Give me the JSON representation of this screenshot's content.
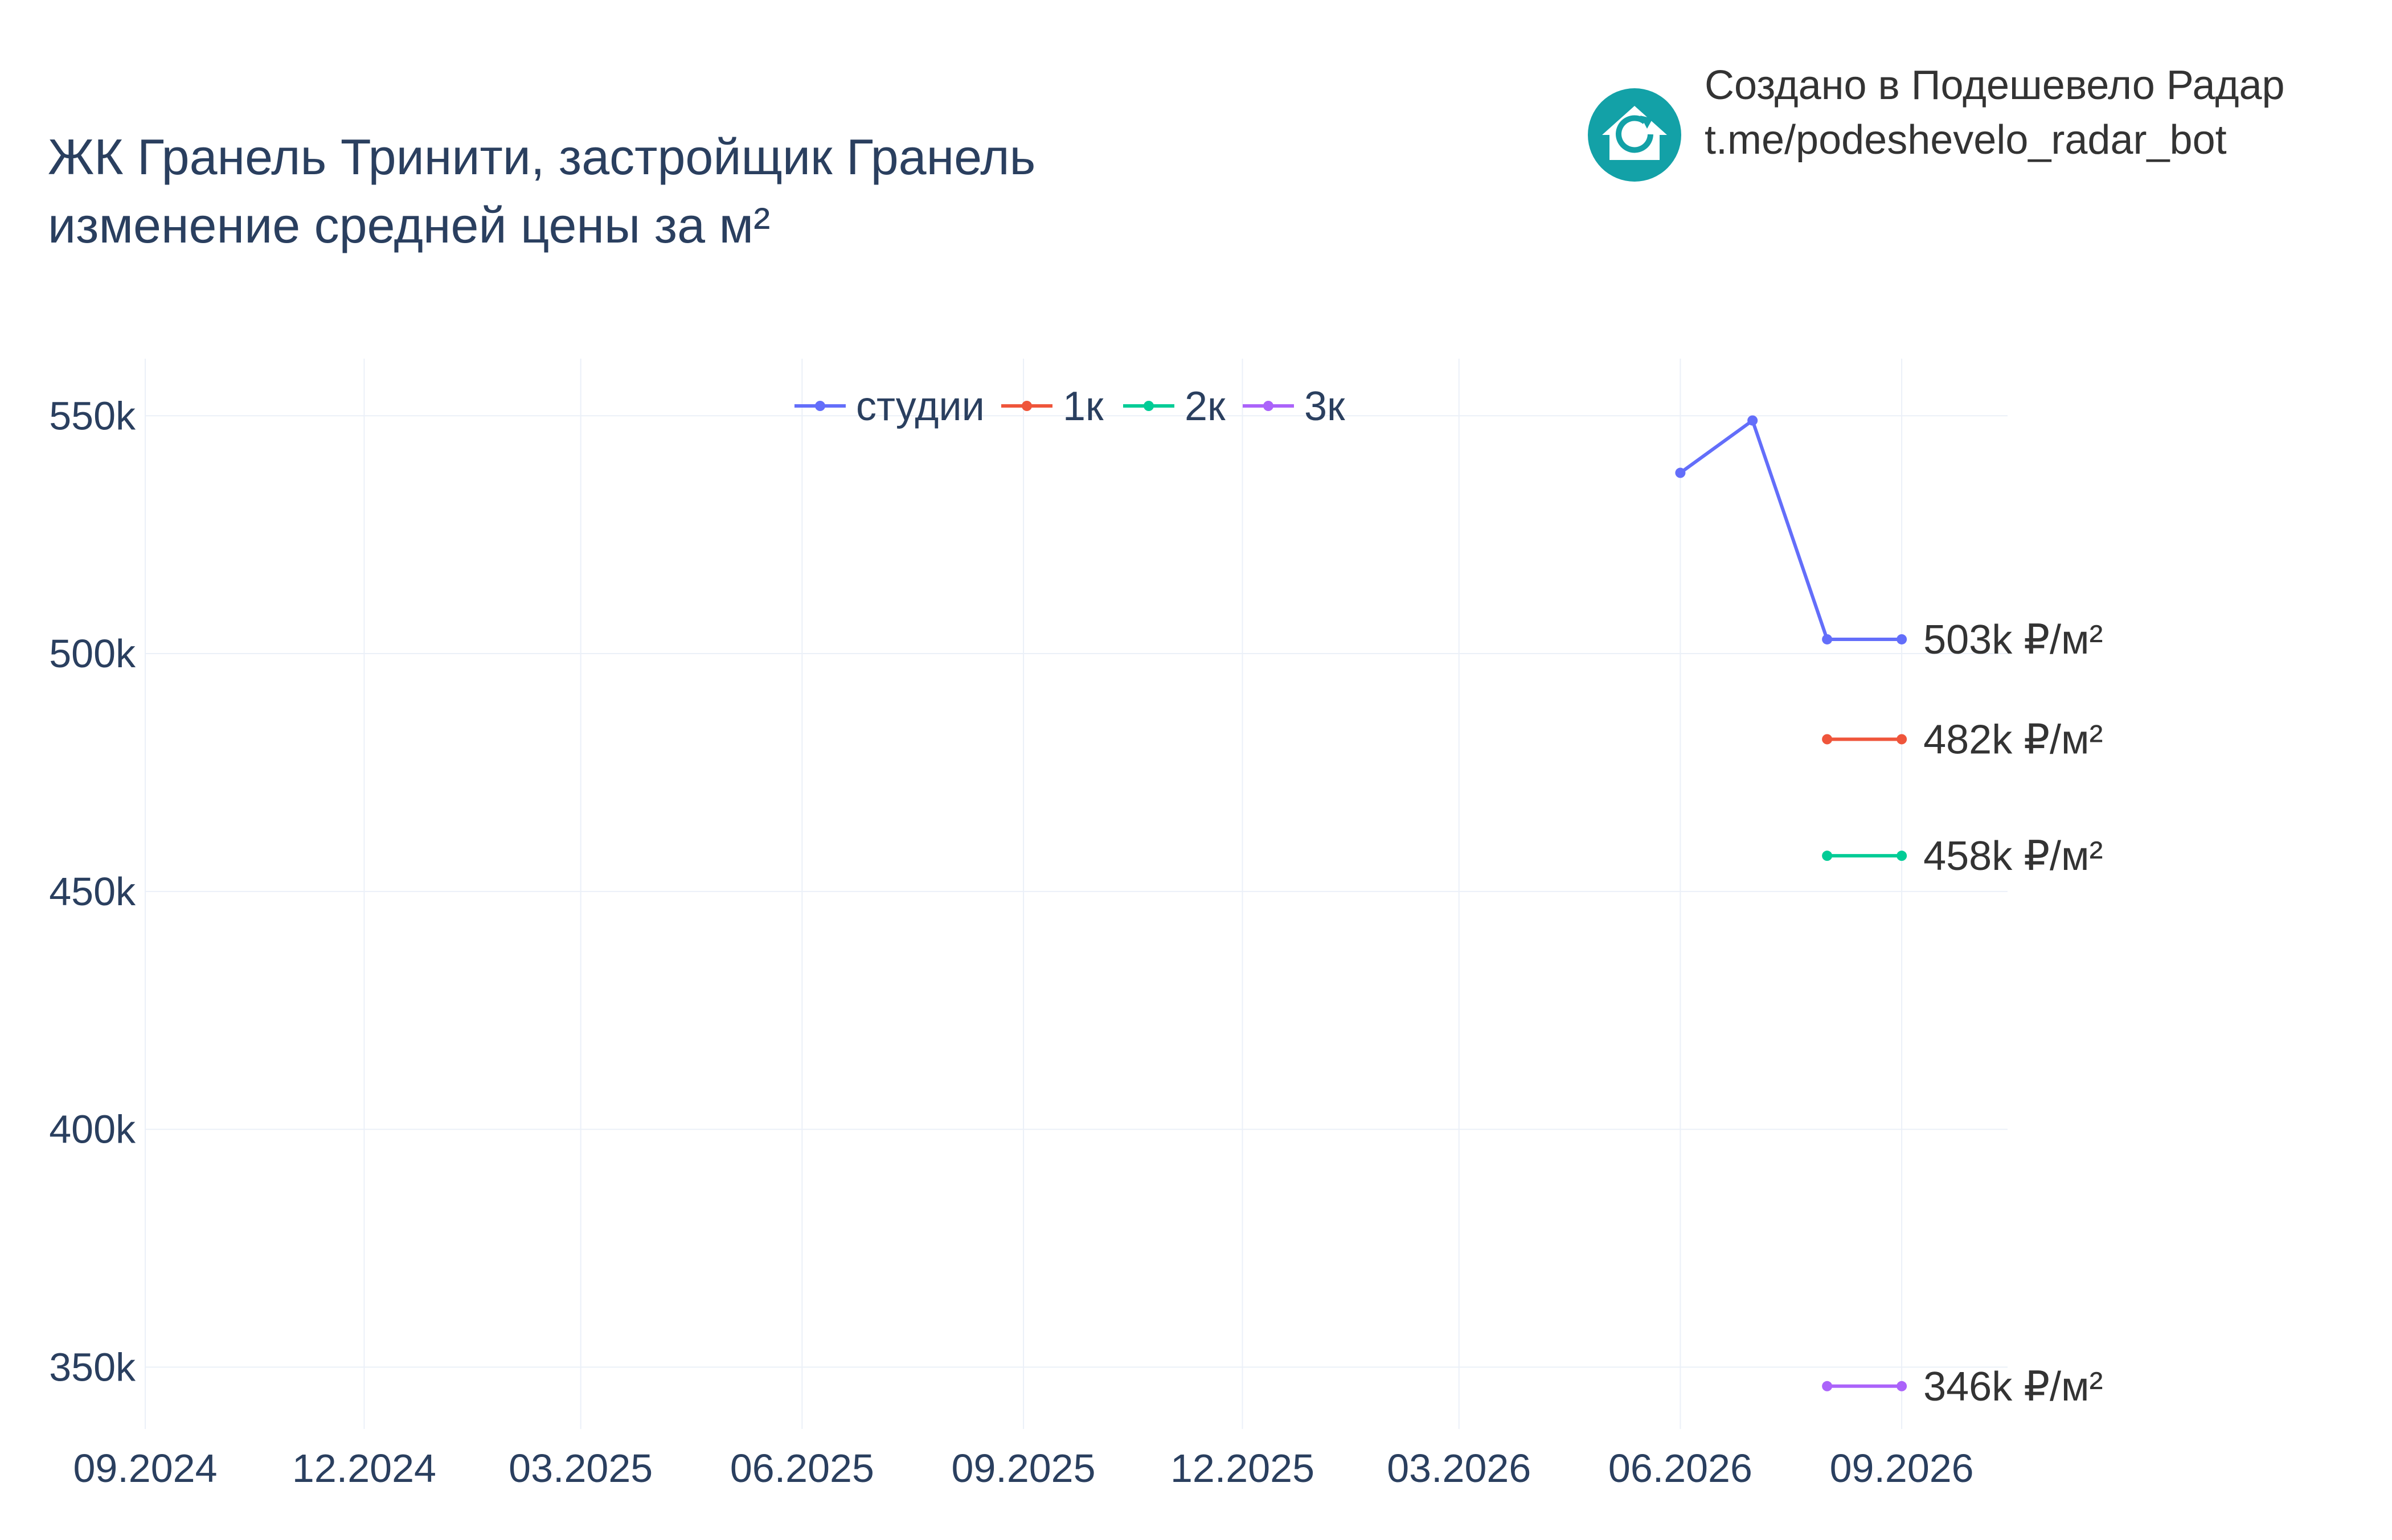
{
  "title_line1": "ЖК Гранель Тринити, застройщик Гранель",
  "title_line2": "изменение средней цены за м²",
  "branding": {
    "line1": "Создано в Подешевело Радар",
    "line2": "t.me/podeshevelo_radar_bot",
    "logo_icon": "house-refresh-icon",
    "logo_color": "#13A1A7"
  },
  "colors": {
    "title": "#2A3F5F",
    "axis_text": "#2A3F5F",
    "grid": "#EBF0F8",
    "end_label": "#333333"
  },
  "chart_data": {
    "type": "line",
    "title": "ЖК Гранель Тринити, застройщик Гранель изменение средней цены за м²",
    "xlabel": "",
    "ylabel": "",
    "xlim": [
      "2024-09-01",
      "2026-10-15"
    ],
    "ylim": [
      337000,
      562000
    ],
    "x_ticks": [
      {
        "date": "2024-09-01",
        "label": "09.2024"
      },
      {
        "date": "2024-12-01",
        "label": "12.2024"
      },
      {
        "date": "2025-03-01",
        "label": "03.2025"
      },
      {
        "date": "2025-06-01",
        "label": "06.2025"
      },
      {
        "date": "2025-09-01",
        "label": "09.2025"
      },
      {
        "date": "2025-12-01",
        "label": "12.2025"
      },
      {
        "date": "2026-03-01",
        "label": "03.2026"
      },
      {
        "date": "2026-06-01",
        "label": "06.2026"
      },
      {
        "date": "2026-09-01",
        "label": "09.2026"
      }
    ],
    "y_ticks": [
      {
        "value": 350000,
        "label": "350k"
      },
      {
        "value": 400000,
        "label": "400k"
      },
      {
        "value": 450000,
        "label": "450k"
      },
      {
        "value": 500000,
        "label": "500k"
      },
      {
        "value": 550000,
        "label": "550k"
      }
    ],
    "grid": true,
    "legend_position": "top-center",
    "series": [
      {
        "name": "студии",
        "color": "#636EFA",
        "x": [
          "2026-06-01",
          "2026-07-01",
          "2026-08-01",
          "2026-09-01"
        ],
        "y": [
          538000,
          549000,
          503000,
          503000
        ],
        "end_label": "503k ₽/м²"
      },
      {
        "name": "1к",
        "color": "#EF553B",
        "x": [
          "2026-08-01",
          "2026-09-01"
        ],
        "y": [
          482000,
          482000
        ],
        "end_label": "482k ₽/м²"
      },
      {
        "name": "2к",
        "color": "#00CC96",
        "x": [
          "2026-08-01",
          "2026-09-01"
        ],
        "y": [
          457500,
          457500
        ],
        "end_label": "458k ₽/м²"
      },
      {
        "name": "3к",
        "color": "#AB63FA",
        "x": [
          "2026-08-01",
          "2026-09-01"
        ],
        "y": [
          346000,
          346000
        ],
        "end_label": "346k ₽/м²"
      }
    ]
  }
}
